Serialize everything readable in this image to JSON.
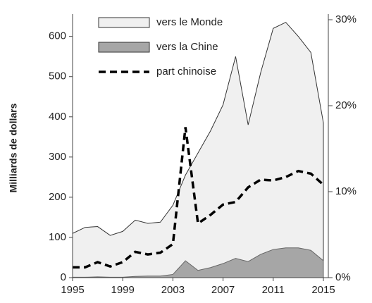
{
  "chart_data": {
    "type": "area",
    "y_label": "Milliards de dollars",
    "x": [
      1995,
      1996,
      1997,
      1998,
      1999,
      2000,
      2001,
      2002,
      2003,
      2004,
      2005,
      2006,
      2007,
      2008,
      2009,
      2010,
      2011,
      2012,
      2013,
      2014,
      2015
    ],
    "xlim": [
      1995,
      2015
    ],
    "xticks": [
      1995,
      1999,
      2003,
      2007,
      2011,
      2015
    ],
    "ylim": [
      0,
      645
    ],
    "yticks": [
      0,
      100,
      200,
      300,
      400,
      500,
      600
    ],
    "y2lim": [
      0,
      30
    ],
    "y2ticks": [
      {
        "value": 0,
        "label": "0%"
      },
      {
        "value": 10,
        "label": "10%"
      },
      {
        "value": 20,
        "label": "20%"
      },
      {
        "value": 30,
        "label": "30%"
      }
    ],
    "series": [
      {
        "name": "vers le Monde",
        "color": "#f0f0f0",
        "values": [
          110,
          125,
          127,
          105,
          115,
          143,
          135,
          138,
          180,
          255,
          310,
          365,
          430,
          550,
          380,
          510,
          620,
          635,
          600,
          560,
          385
        ]
      },
      {
        "name": "vers la Chine",
        "color": "#a6a6a6",
        "values": [
          1,
          1,
          2,
          1,
          1,
          3,
          4,
          4,
          8,
          42,
          18,
          25,
          35,
          48,
          40,
          58,
          70,
          74,
          74,
          68,
          42
        ]
      },
      {
        "name": "part chinoise",
        "color": "#000000",
        "axis": "y2",
        "style": "dashed",
        "values": [
          1.2,
          1.2,
          1.8,
          1.3,
          1.8,
          3.0,
          2.7,
          2.9,
          3.9,
          17.5,
          6.3,
          7.3,
          8.5,
          8.8,
          10.5,
          11.4,
          11.3,
          11.7,
          12.4,
          12.1,
          10.8
        ]
      }
    ]
  }
}
